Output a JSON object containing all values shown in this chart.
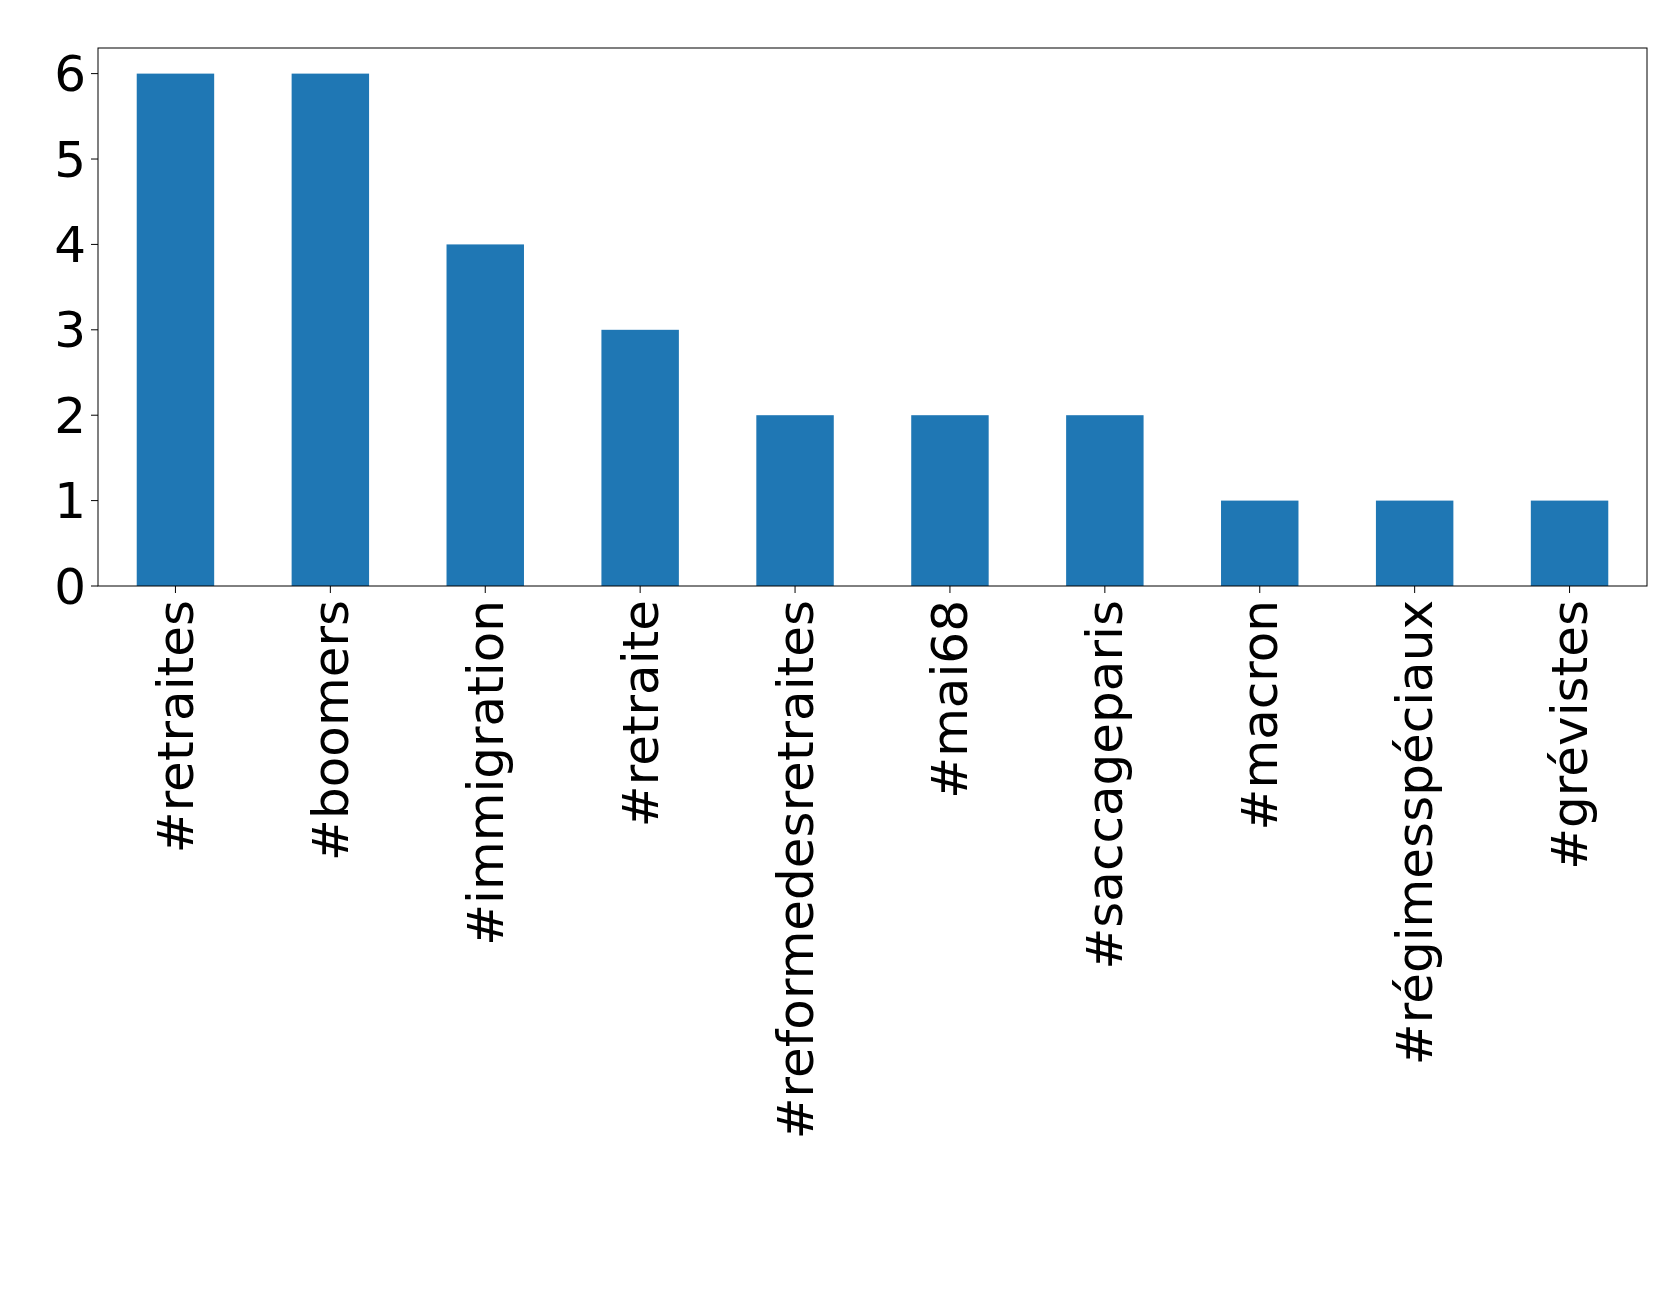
{
  "chart_data": {
    "type": "bar",
    "categories": [
      "#retraites",
      "#boomers",
      "#immigration",
      "#retraite",
      "#reformedesretraites",
      "#mai68",
      "#saccageparis",
      "#macron",
      "#régimesspéciaux",
      "#grévistes"
    ],
    "values": [
      6,
      6,
      4,
      3,
      2,
      2,
      2,
      1,
      1,
      1
    ],
    "color": "#1f77b4",
    "ylim": [
      0,
      6.3
    ],
    "yticks": [
      0,
      1,
      2,
      3,
      4,
      5,
      6
    ],
    "grid": false
  }
}
